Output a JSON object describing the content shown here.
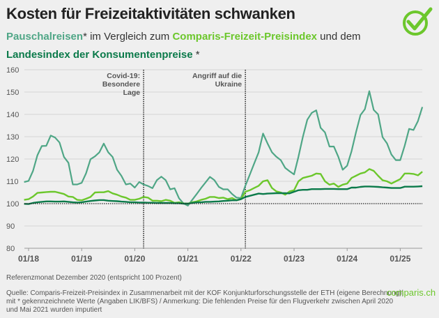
{
  "header": {
    "title": "Kosten für Freizeitaktivitäten schwanken",
    "subtitle_part1": "Pauschalreisen",
    "subtitle_part2": "* im Vergleich zum ",
    "subtitle_part3": "Comparis-Freizeit-Preisindex",
    "subtitle_part4": " und dem ",
    "subtitle_part5": "Landesindex der Konsumentenpreise",
    "subtitle_part6": " *"
  },
  "logo": {
    "icon": "check-circle-icon",
    "color": "#6cc72c"
  },
  "footer": {
    "reference": "Referenzmonat Dezember 2020 (entspricht 100 Prozent)",
    "source_line1": "Quelle: Comparis-Freizeit-Preisindex in Zusammenarbeit mit der KOF Konjunkturforschungsstelle der ETH (eigene Berechnung)|",
    "source_line2": "mit * gekennzeichnete Werte (Angaben LIK/BFS) / Anmerkung: Die fehlenden Preise für den Flugverkehr zwischen April 2020",
    "source_line3": "und Mai 2021 wurden imputiert",
    "brand": "comparis.ch"
  },
  "chart_data": {
    "type": "line",
    "ylim": [
      80,
      160
    ],
    "yticks": [
      "80",
      "90",
      "100",
      "110",
      "120",
      "130",
      "140",
      "150",
      "160"
    ],
    "xtick_labels": [
      "01/18",
      "01/19",
      "01/20",
      "01/21",
      "01/22",
      "01/23",
      "01/24",
      "01/25"
    ],
    "grid": true,
    "reference_line": 100,
    "annotations": [
      {
        "x": "03/20",
        "label_lines": [
          "Covid-19:",
          "Besondere",
          "Lage"
        ]
      },
      {
        "x": "02/22",
        "label_lines": [
          "Angriff auf die",
          "Ukraine"
        ]
      }
    ],
    "x": [
      "12/17",
      "01/18",
      "02/18",
      "03/18",
      "04/18",
      "05/18",
      "06/18",
      "07/18",
      "08/18",
      "09/18",
      "10/18",
      "11/18",
      "12/18",
      "01/19",
      "02/19",
      "03/19",
      "04/19",
      "05/19",
      "06/19",
      "07/19",
      "08/19",
      "09/19",
      "10/19",
      "11/19",
      "12/19",
      "01/20",
      "02/20",
      "03/20",
      "04/20",
      "05/20",
      "06/20",
      "07/20",
      "08/20",
      "09/20",
      "10/20",
      "11/20",
      "12/20",
      "01/21",
      "02/21",
      "03/21",
      "04/21",
      "05/21",
      "06/21",
      "07/21",
      "08/21",
      "09/21",
      "10/21",
      "11/21",
      "12/21",
      "01/22",
      "02/22",
      "03/22",
      "04/22",
      "05/22",
      "06/22",
      "07/22",
      "08/22",
      "09/22",
      "10/22",
      "11/22",
      "12/22",
      "01/23",
      "02/23",
      "03/23",
      "04/23",
      "05/23",
      "06/23",
      "07/23",
      "08/23",
      "09/23",
      "10/23",
      "11/23",
      "12/23",
      "01/24",
      "02/24",
      "03/24",
      "04/24",
      "05/24",
      "06/24",
      "07/24",
      "08/24",
      "09/24",
      "10/24",
      "11/24",
      "12/24",
      "01/25",
      "02/25",
      "03/25",
      "04/25",
      "05/25",
      "06/25"
    ],
    "series": [
      {
        "name": "Pauschalreisen",
        "color": "#4fa686",
        "values": [
          109.7,
          110.2,
          114.7,
          121.7,
          125.8,
          125.9,
          130.5,
          129.6,
          127.4,
          120.9,
          118.3,
          108.6,
          108.6,
          109.3,
          113.6,
          119.9,
          121.2,
          123,
          126.9,
          123,
          120.9,
          115.2,
          112.4,
          108.6,
          109,
          107.2,
          109.7,
          108.6,
          107.9,
          106.9,
          110.5,
          112.1,
          110.5,
          106.4,
          106.9,
          102.4,
          100.1,
          99.1,
          101.7,
          104.3,
          107,
          109.5,
          112,
          110.5,
          107.5,
          106.4,
          106.4,
          104.3,
          102.7,
          102.5,
          108,
          113,
          118,
          123,
          131.4,
          127,
          123,
          121,
          119.5,
          116,
          114.5,
          113.1,
          121,
          130,
          137.6,
          140.7,
          141.8,
          134,
          131.9,
          125.6,
          125.6,
          121,
          115.2,
          117,
          123.5,
          132,
          139.7,
          142.3,
          150.4,
          142,
          140,
          129.8,
          127,
          122,
          119.5,
          119.5,
          126,
          133.5,
          133,
          137,
          143.3
        ]
      },
      {
        "name": "Comparis-Freizeit-Preisindex",
        "color": "#6cc72c",
        "values": [
          101.7,
          102,
          103.2,
          104.8,
          105,
          105.2,
          105.3,
          105.3,
          104.8,
          104.3,
          103.2,
          103,
          101.7,
          101.5,
          102.2,
          103,
          105,
          105.1,
          105.1,
          105.6,
          104.6,
          104,
          103.2,
          102.7,
          101.7,
          101.7,
          102.2,
          103,
          102.7,
          101.3,
          101.3,
          101.1,
          101.7,
          101.3,
          100.3,
          100.6,
          100.1,
          100,
          100.6,
          101,
          101.7,
          102.2,
          103,
          103,
          102.5,
          102.7,
          102,
          102.5,
          101.5,
          102,
          105.3,
          106,
          107,
          108,
          110,
          110.5,
          107,
          105.5,
          105,
          104,
          105.5,
          106,
          110,
          111.5,
          112,
          112.5,
          113.5,
          113.3,
          110,
          108.5,
          109,
          107.5,
          108.5,
          109,
          111.5,
          112.5,
          113.5,
          114,
          115.5,
          114.7,
          112.5,
          110.5,
          110,
          109,
          110,
          111,
          113.5,
          113.5,
          113.3,
          112.7,
          114.3
        ]
      },
      {
        "name": "Landesindex der Konsumentenpreise",
        "color": "#0b7a4a",
        "values": [
          99.9,
          99.8,
          100.3,
          100.6,
          100.8,
          101,
          101,
          100.9,
          100.9,
          101,
          100.8,
          100.6,
          100.5,
          100.6,
          100.9,
          101.2,
          101.4,
          101.6,
          101.6,
          101.3,
          101.2,
          101.1,
          100.9,
          100.8,
          100.6,
          100.6,
          100.5,
          100.5,
          100.4,
          100.4,
          100.3,
          100.3,
          100.3,
          100.3,
          100.2,
          100.2,
          100,
          100,
          100.3,
          100.6,
          100.6,
          100.8,
          100.8,
          100.9,
          101,
          101.2,
          101.3,
          101.5,
          101.5,
          102,
          103,
          103.5,
          104,
          104.5,
          104.3,
          104.5,
          104.6,
          104.7,
          104.7,
          104.7,
          104.6,
          105.3,
          106,
          106.2,
          106.2,
          106.5,
          106.5,
          106.5,
          106.6,
          106.6,
          106.6,
          106.5,
          106.5,
          106.5,
          107.2,
          107.2,
          107.5,
          107.7,
          107.7,
          107.6,
          107.5,
          107.3,
          107.2,
          107,
          107,
          107,
          107.6,
          107.6,
          107.6,
          107.7,
          107.8
        ]
      }
    ]
  }
}
